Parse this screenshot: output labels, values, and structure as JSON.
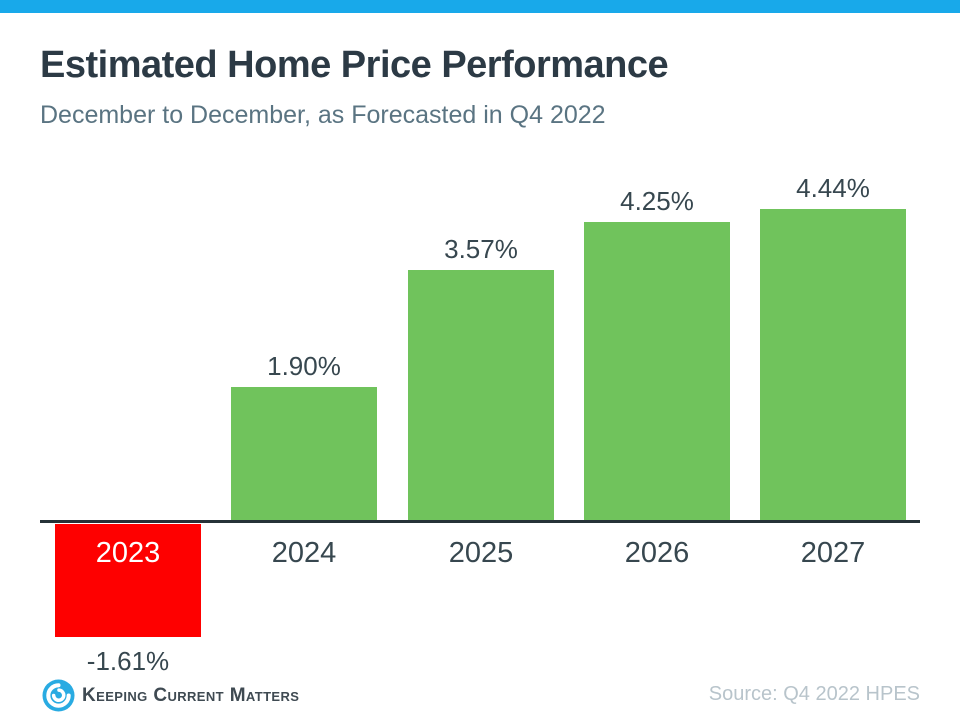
{
  "accent_color": "#18a9ea",
  "header": {
    "title": "Estimated Home Price Performance",
    "subtitle": "December to December, as Forecasted in Q4 2022"
  },
  "chart_data": {
    "type": "bar",
    "title": "Estimated Home Price Performance",
    "subtitle": "December to December, as Forecasted in Q4 2022",
    "categories": [
      "2023",
      "2024",
      "2025",
      "2026",
      "2027"
    ],
    "values": [
      -1.61,
      1.9,
      3.57,
      4.25,
      4.44
    ],
    "value_labels": [
      "-1.61%",
      "1.90%",
      "3.57%",
      "4.25%",
      "4.44%"
    ],
    "xlabel": "",
    "ylabel": "",
    "ylim": [
      -2,
      5
    ],
    "grid": false,
    "legend": null,
    "colors": {
      "positive_bar": "#70c35c",
      "negative_bar": "#fe0000",
      "axis_line": "#263238",
      "label_text": "#37474f",
      "negative_year_text": "#ffffff"
    }
  },
  "footer": {
    "logo_text": "Keeping Current Matters",
    "logo_color": "#29abe2",
    "source": "Source: Q4 2022 HPES"
  }
}
